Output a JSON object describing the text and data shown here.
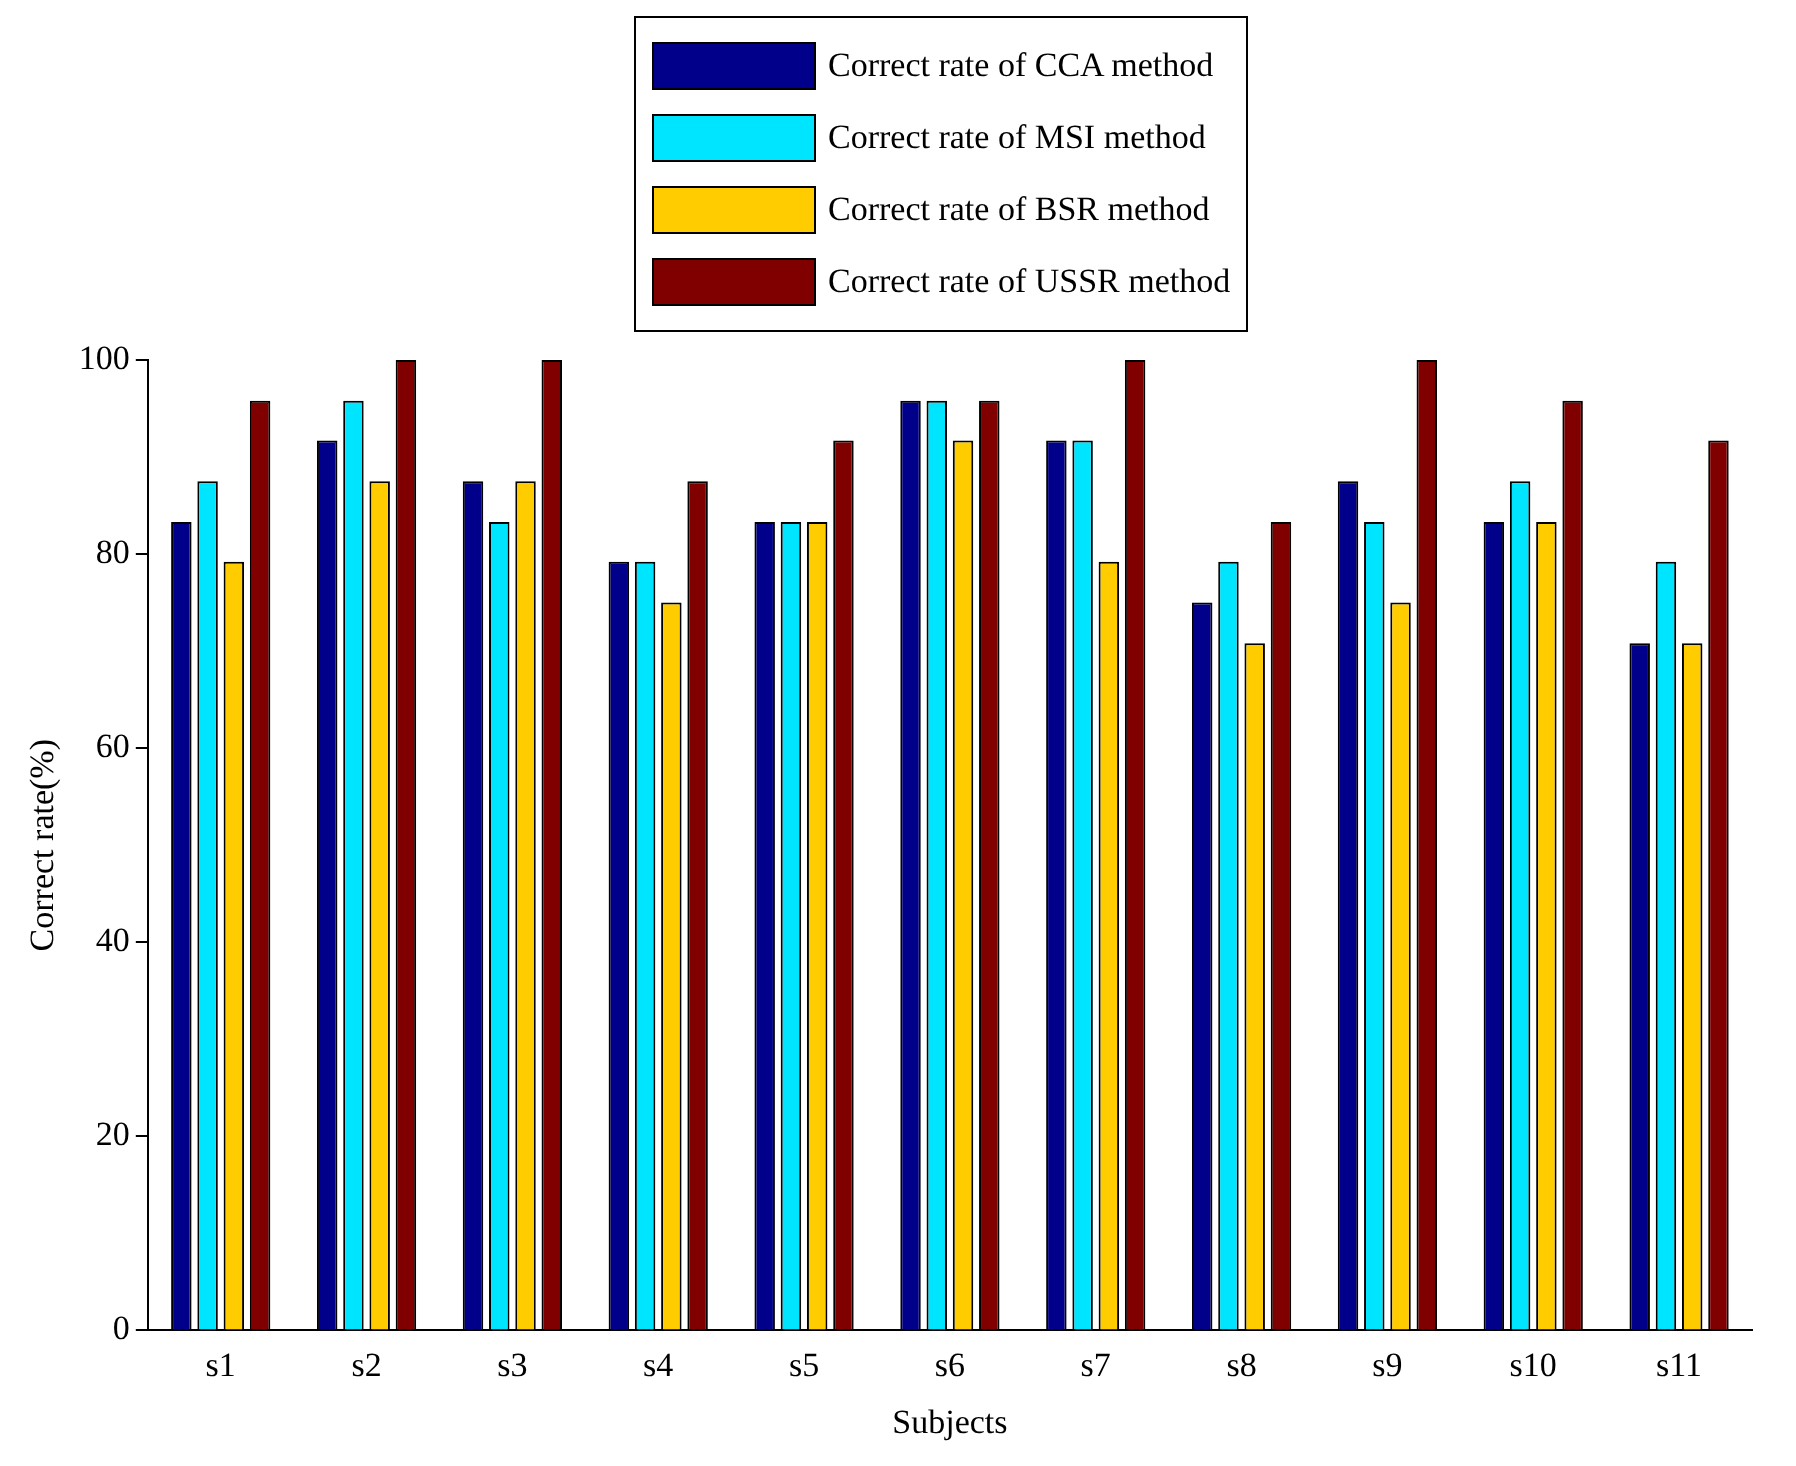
{
  "chart_data": {
    "type": "bar",
    "xlabel": "Subjects",
    "ylabel": "Correct rate(%)",
    "categories": [
      "s1",
      "s2",
      "s3",
      "s4",
      "s5",
      "s6",
      "s7",
      "s8",
      "s9",
      "s10",
      "s11"
    ],
    "series": [
      {
        "name": "Correct rate of CCA method",
        "color": "#00008b",
        "values": [
          83.3,
          91.7,
          87.5,
          79.2,
          83.3,
          95.8,
          91.7,
          75,
          87.5,
          83.3,
          70.8
        ]
      },
      {
        "name": "Correct rate of MSI method",
        "color": "#00e5ff",
        "values": [
          87.5,
          95.8,
          83.3,
          79.2,
          83.3,
          95.8,
          91.7,
          79.2,
          83.3,
          87.5,
          79.2
        ]
      },
      {
        "name": "Correct rate of BSR method",
        "color": "#ffcc00",
        "values": [
          79.2,
          87.5,
          87.5,
          75,
          83.3,
          91.7,
          79.2,
          70.8,
          75,
          83.3,
          70.8
        ]
      },
      {
        "name": "Correct rate of USSR method",
        "color": "#800000",
        "values": [
          95.8,
          100,
          100,
          87.5,
          91.7,
          95.8,
          100,
          83.3,
          100,
          95.8,
          91.7
        ]
      }
    ],
    "ylim": [
      0,
      100
    ],
    "yticks": [
      0,
      20,
      40,
      60,
      80,
      100
    ],
    "grid": false,
    "legend": "top"
  }
}
